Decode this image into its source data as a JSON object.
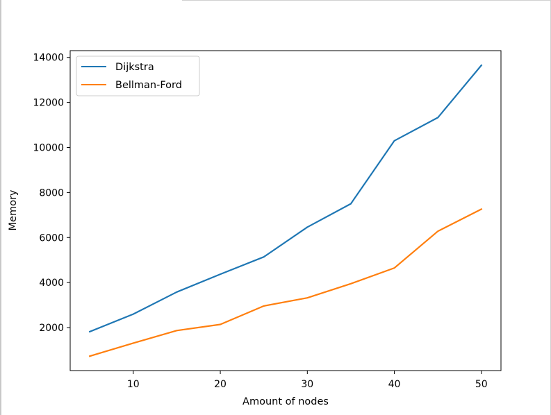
{
  "chart_data": {
    "type": "line",
    "title": "",
    "xlabel": "Amount of nodes",
    "ylabel": "Memory",
    "x": [
      5,
      10,
      15,
      20,
      25,
      30,
      35,
      40,
      45,
      50
    ],
    "xlim": [
      2.75,
      52.25
    ],
    "ylim": [
      90,
      14300
    ],
    "x_ticks": [
      10,
      20,
      30,
      40,
      50
    ],
    "y_ticks": [
      2000,
      4000,
      6000,
      8000,
      10000,
      12000,
      14000
    ],
    "grid": false,
    "legend_position": "top-left",
    "series": [
      {
        "name": "Dijkstra",
        "color": "#1f77b4",
        "values": [
          1820,
          2600,
          3580,
          4370,
          5140,
          6460,
          7500,
          10300,
          11330,
          13650
        ]
      },
      {
        "name": "Bellman-Ford",
        "color": "#ff7f0e",
        "values": [
          730,
          1310,
          1870,
          2140,
          2960,
          3320,
          3950,
          4650,
          6280,
          7260
        ]
      }
    ]
  }
}
